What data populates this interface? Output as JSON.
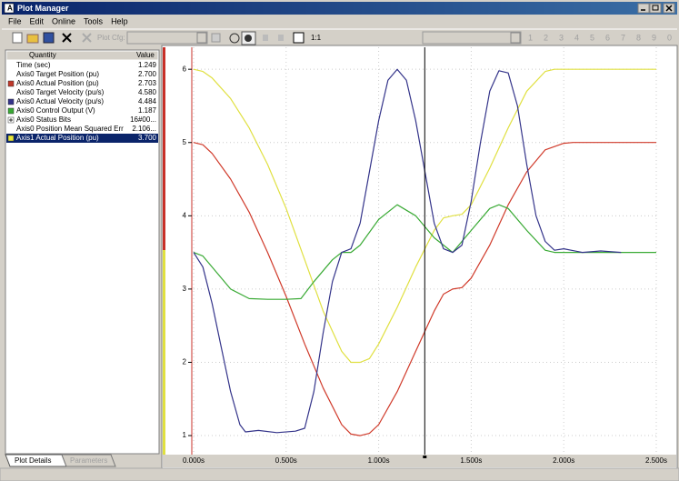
{
  "window": {
    "title": "Plot Manager"
  },
  "menu": [
    "File",
    "Edit",
    "Online",
    "Tools",
    "Help"
  ],
  "toolbar": {
    "plot_cfg_label": "Plot Cfg:",
    "zoom": "1:1",
    "slots": [
      "1",
      "2",
      "3",
      "4",
      "5",
      "6",
      "7",
      "8",
      "9",
      "0"
    ]
  },
  "quantities": {
    "headers": [
      "Quantity",
      "Value"
    ],
    "rows": [
      {
        "quantity": "Time (sec)",
        "value": "1.249"
      },
      {
        "quantity": "Axis0 Target Position (pu)",
        "value": "2.700"
      },
      {
        "quantity": "Axis0 Actual Position (pu)",
        "value": "2.703",
        "color": "#c0392b"
      },
      {
        "quantity": "Axis0 Target Velocity (pu/s)",
        "value": "4.580"
      },
      {
        "quantity": "Axis0 Actual Velocity (pu/s)",
        "value": "4.484",
        "color": "#34348a"
      },
      {
        "quantity": "Axis0 Control Output (V)",
        "value": "1.187",
        "color": "#3aaa35"
      },
      {
        "quantity": "Axis0 Status Bits",
        "value": "16#00...",
        "expander": true
      },
      {
        "quantity": "Axis0 Position Mean Squared Err",
        "value": "2.106..."
      },
      {
        "quantity": "Axis1 Actual Position (pu)",
        "value": "3.700",
        "color": "#e8e83a",
        "selected": true
      }
    ]
  },
  "tabs": [
    "Plot Details",
    "Parameters"
  ],
  "chart_data": {
    "type": "line",
    "xlim": [
      0,
      2.5
    ],
    "xticks": [
      {
        "value": 0,
        "label": "0.000s"
      },
      {
        "value": 0.5,
        "label": "0.500s"
      },
      {
        "value": 1,
        "label": "1.000s"
      },
      {
        "value": 1.5,
        "label": "1.500s"
      },
      {
        "value": 2,
        "label": "2.000s"
      },
      {
        "value": 2.5,
        "label": "2.500s"
      }
    ],
    "ylim": [
      0.74,
      6.3
    ],
    "yticks": [
      1,
      2,
      3,
      4,
      5,
      6
    ],
    "grid": true,
    "series": [
      {
        "color": "#e0e040",
        "x": [
          0,
          0.05,
          0.1,
          0.2,
          0.3,
          0.4,
          0.5,
          0.6,
          0.7,
          0.8,
          0.85,
          0.9,
          0.95,
          1.0,
          1.1,
          1.2,
          1.3,
          1.35,
          1.4,
          1.45,
          1.5,
          1.6,
          1.7,
          1.8,
          1.9,
          1.95,
          2.0,
          2.5
        ],
        "values": [
          6,
          5.97,
          5.88,
          5.6,
          5.2,
          4.7,
          4.1,
          3.4,
          2.7,
          2.15,
          2.0,
          2.0,
          2.05,
          2.25,
          2.75,
          3.3,
          3.8,
          3.97,
          4.0,
          4.02,
          4.15,
          4.65,
          5.2,
          5.7,
          5.97,
          6.0,
          6.0,
          6.0
        ]
      },
      {
        "color": "#d03a2a",
        "x": [
          0,
          0.05,
          0.1,
          0.2,
          0.3,
          0.4,
          0.5,
          0.6,
          0.7,
          0.8,
          0.85,
          0.9,
          0.95,
          1.0,
          1.1,
          1.2,
          1.3,
          1.35,
          1.4,
          1.45,
          1.5,
          1.6,
          1.7,
          1.8,
          1.9,
          2.0,
          2.05,
          2.5
        ],
        "values": [
          5,
          4.97,
          4.85,
          4.5,
          4.05,
          3.5,
          2.9,
          2.25,
          1.65,
          1.15,
          1.02,
          1.0,
          1.03,
          1.15,
          1.6,
          2.15,
          2.7,
          2.93,
          3.0,
          3.02,
          3.15,
          3.6,
          4.15,
          4.6,
          4.9,
          4.99,
          5.0,
          5.0
        ]
      },
      {
        "color": "#3aaa35",
        "x": [
          0,
          0.05,
          0.1,
          0.2,
          0.3,
          0.4,
          0.5,
          0.58,
          0.65,
          0.75,
          0.8,
          0.85,
          0.9,
          1.0,
          1.1,
          1.2,
          1.3,
          1.4,
          1.5,
          1.6,
          1.65,
          1.7,
          1.8,
          1.9,
          1.95,
          2.5
        ],
        "values": [
          3.5,
          3.45,
          3.3,
          3.0,
          2.87,
          2.86,
          2.86,
          2.87,
          3.1,
          3.4,
          3.5,
          3.5,
          3.6,
          3.95,
          4.15,
          4.0,
          3.7,
          3.5,
          3.8,
          4.1,
          4.15,
          4.1,
          3.8,
          3.53,
          3.5,
          3.5
        ]
      },
      {
        "color": "#34348a",
        "x": [
          0,
          0.05,
          0.1,
          0.15,
          0.2,
          0.25,
          0.28,
          0.35,
          0.45,
          0.55,
          0.6,
          0.65,
          0.7,
          0.75,
          0.8,
          0.85,
          0.9,
          0.95,
          1.0,
          1.05,
          1.1,
          1.15,
          1.2,
          1.25,
          1.3,
          1.35,
          1.4,
          1.45,
          1.5,
          1.55,
          1.6,
          1.65,
          1.7,
          1.75,
          1.8,
          1.85,
          1.9,
          1.95,
          2.0,
          2.1,
          2.2,
          2.31
        ],
        "values": [
          3.5,
          3.3,
          2.8,
          2.2,
          1.6,
          1.15,
          1.05,
          1.07,
          1.04,
          1.06,
          1.1,
          1.6,
          2.4,
          3.1,
          3.5,
          3.55,
          3.9,
          4.6,
          5.3,
          5.85,
          6.0,
          5.85,
          5.3,
          4.6,
          3.9,
          3.55,
          3.5,
          3.6,
          4.2,
          5.0,
          5.7,
          5.98,
          5.95,
          5.5,
          4.7,
          4.0,
          3.65,
          3.53,
          3.55,
          3.5,
          3.52,
          3.5
        ]
      }
    ]
  }
}
